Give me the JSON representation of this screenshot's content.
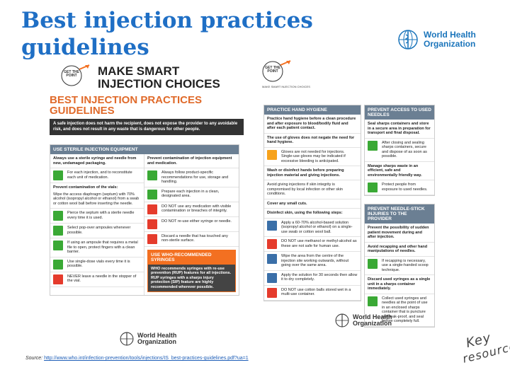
{
  "slide": {
    "title_line1": "Best injection practices",
    "title_line2": "guidelines",
    "who_line1": "World Health",
    "who_line2": "Organization",
    "source_label": "Source:",
    "source_url": "http://www.who.int/infection-prevention/tools/injections/IS_best-practices-guidelines.pdf?ua=1",
    "key_word": "Key",
    "resource_word": "resource"
  },
  "poster": {
    "get_the_point": "GET THE POINT",
    "headline_line1": "MAKE SMART",
    "headline_line2": "INJECTION CHOICES",
    "subtitle_line1": "BEST INJECTION PRACTICES",
    "subtitle_line2": "GUIDELINES",
    "right_badge_caption": "MAKE SMART INJECTION CHOICES",
    "intro": "A safe injection does not harm the recipient, does not expose the provider to any avoidable risk, and does not result in any waste that is dangerous for other people.",
    "sterile_header": "USE STERILE INJECTION EQUIPMENT",
    "sterile_left_bold": "Always use a sterile syringe and needle from new, undamaged packaging.",
    "sterile_left_1": "For each injection, and to reconstitute each unit of medication.",
    "sterile_right_bold": "Prevent contamination of injection equipment and medication.",
    "sterile_right_1": "Always follow product-specific recommendations for use, storage and handling.",
    "sterile_right_2": "Prepare each injection in a clean, designated area.",
    "vials_bold": "Prevent contamination of the vials:",
    "vials_1": "Wipe the access diaphragm (septum) with 70% alcohol (isopropyl alcohol or ethanol) from a swab or cotton wool ball before inserting the needle.",
    "vials_2": "Pierce the septum with a sterile needle every time it is used.",
    "vials_3": "Select pop-over ampoules whenever possible.",
    "vials_4": "If using an ampoule that requires a metal file to open, protect fingers with a clean barrier.",
    "vials_5": "Use single-dose vials every time it is possible.",
    "vials_6": "NEVER leave a needle in the stopper of the vial.",
    "dont_1": "DO NOT use any medication with visible contamination or breaches of integrity.",
    "dont_2": "DO NOT re-use either syringe or needle.",
    "dont_3": "Discard a needle that has touched any non-sterile surface.",
    "who_rec_header": "USE WHO-RECOMMENDED SYRINGES",
    "who_rec_body": "WHO recommends syringes with re-use prevention (RUP) features for all injections. RUP syringes with a sharps injury protection (SIP) feature are highly recommended wherever possible.",
    "hygiene_header": "PRACTICE HAND HYGIENE",
    "hygiene_bold": "Practice hand hygiene before a clean procedure and after exposure to blood/bodily fluid and after each patient contact.",
    "hygiene_2": "The use of gloves does not negate the need for hand hygiene.",
    "gloves_note": "Gloves are not needed for injections. Single-use gloves may be indicated if excessive bleeding is anticipated.",
    "wash_bold": "Wash or disinfect hands before preparing injection material and giving injections.",
    "wash_2": "Avoid giving injections if skin integrity is compromised by local infection or other skin conditions.",
    "cover_cuts": "Cover any small cuts.",
    "disinfect_header": "Disinfect skin, using the following steps:",
    "step_1": "Apply a 60-70% alcohol-based solution (isopropyl alcohol or ethanol) on a single-use swab or cotton wool ball.",
    "step_2": "DO NOT use methanol or methyl-alcohol as these are not safe for human use.",
    "step_3": "Wipe the area from the centre of the injection site working outwards, without going over the same area.",
    "step_4": "Apply the solution for 30 seconds then allow it to dry completely.",
    "step_5": "DO NOT use cotton balls stored wet in a multi-use container.",
    "prevent_access_header": "PREVENT ACCESS TO USED NEEDLES",
    "prevent_access_bold": "Seal sharps containers and store in a secure area in preparation for transport and final disposal.",
    "prevent_access_1": "After closing and sealing sharps containers, secure and dispose of as soon as possible.",
    "manage_sharps": "Manage sharps waste in an efficient, safe and environmentally friendly way.",
    "manage_sharps_1": "Protect people from exposure to used needles.",
    "needlestick_header": "PREVENT NEEDLE-STICK INJURIES TO THE PROVIDER",
    "needlestick_bold": "Prevent the possibility of sudden patient movement during and after injection.",
    "recap_bold": "Avoid recapping and other hand manipulations of needles.",
    "recap_1": "If recapping is necessary, use a single-handed scoop technique.",
    "discard_bold": "Discard used syringes as a single unit in a sharps container immediately.",
    "discard_1": "Collect used syringes and needles at the point of use in an enclosed sharps container that is puncture and leak-proof, and seal before completely full.",
    "who_line1": "World Health",
    "who_line2": "Organization"
  },
  "colors": {
    "title_blue": "#1f6fc5",
    "accent_orange": "#f37021",
    "header_grey": "#6b7f93",
    "icon_green": "#3aa935",
    "icon_red": "#e53b2c"
  }
}
